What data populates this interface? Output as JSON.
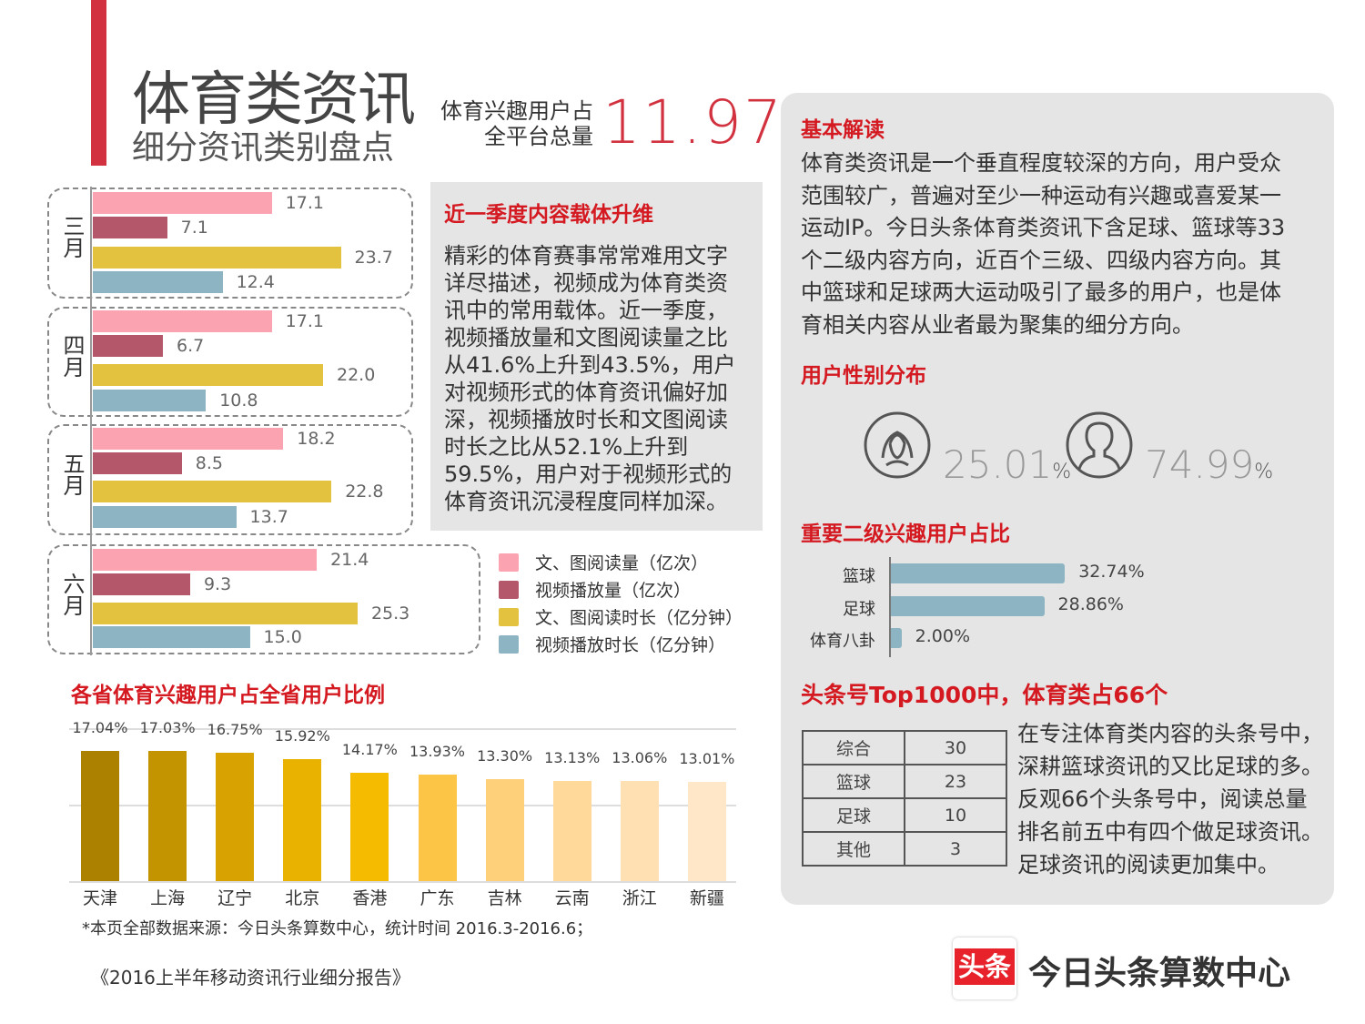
{
  "header": {
    "title": "体育类资讯",
    "subtitle": "细分资讯类别盘点",
    "share_label_line1": "体育兴趣用户占",
    "share_label_line2": "全平台总量",
    "share_value": "11.97",
    "share_unit": "%"
  },
  "content_box": {
    "heading": "近一季度内容载体升维",
    "body": [
      "精彩的体育赛事常常难用文字",
      "详尽描述，视频成为体育类资",
      "讯中的常用载体。近一季度，",
      "视频播放量和文图阅读量之比",
      "从41.6%上升到43.5%，用户",
      "对视频形式的体育资讯偏好加",
      "深，视频播放时长和文图阅读",
      "时长之比从52.1%上升到",
      "59.5%，用户对于视频形式的",
      "体育资讯沉浸程度同样加深。"
    ]
  },
  "province_heading": "各省体育兴趣用户占全省用户比例",
  "footnote": "*本页全部数据来源：今日头条算数中心，统计时间 2016.3-2016.6；",
  "report_title": "《2016上半年移动资讯行业细分报告》",
  "right": {
    "basic_heading": "基本解读",
    "basic_text": [
      "体育类资讯是一个垂直程度较深的方向，用户受众",
      "范围较广，普遍对至少一种运动有兴趣或喜爱某一",
      "运动IP。今日头条体育类资讯下含足球、篮球等33",
      "个二级内容方向，近百个三级、四级内容方向。其",
      "中篮球和足球两大运动吸引了最多的用户，也是体",
      "育相关内容从业者最为聚集的细分方向。"
    ],
    "gender_heading": "用户性别分布",
    "female_value": "25.01",
    "male_value": "74.99",
    "pct": "%",
    "interest_heading": "重要二级兴趣用户占比",
    "top_heading": "头条号Top1000中，体育类占66个",
    "table": [
      [
        "综合",
        "30"
      ],
      [
        "篮球",
        "23"
      ],
      [
        "足球",
        "10"
      ],
      [
        "其他",
        "3"
      ]
    ],
    "top_text": [
      "在专注体育类内容的头条号中，",
      "深耕篮球资讯的又比足球的多。",
      "反观66个头条号中，阅读总量",
      "排名前五中有四个做足球资讯。",
      "足球资讯的阅读更加集中。"
    ]
  },
  "logo": {
    "badge": "头条",
    "name": "今日头条算数中心"
  },
  "chart_data": [
    {
      "type": "bar",
      "orientation": "horizontal",
      "categories": [
        "三月",
        "四月",
        "五月",
        "六月"
      ],
      "series": [
        {
          "name": "文、图阅读量（亿次）",
          "color": "#fba3b0",
          "values": [
            17.1,
            17.1,
            18.2,
            21.4
          ]
        },
        {
          "name": "视频播放量（亿次）",
          "color": "#b5576a",
          "values": [
            7.1,
            6.7,
            8.5,
            9.3
          ]
        },
        {
          "name": "文、图阅读时长（亿分钟）",
          "color": "#e3c23f",
          "values": [
            23.7,
            22.0,
            22.8,
            25.3
          ]
        },
        {
          "name": "视频播放时长（亿分钟）",
          "color": "#8db4c2",
          "values": [
            12.4,
            10.8,
            13.7,
            15.0
          ]
        }
      ],
      "labels": [
        [
          "17.1",
          "7.1",
          "23.7",
          "12.4"
        ],
        [
          "17.1",
          "6.7",
          "22.0",
          "10.8"
        ],
        [
          "18.2",
          "8.5",
          "22.8",
          "13.7"
        ],
        [
          "21.4",
          "9.3",
          "25.3",
          "15.0"
        ]
      ],
      "legend": "right"
    },
    {
      "type": "bar",
      "title": "各省体育兴趣用户占全省用户比例",
      "categories": [
        "天津",
        "上海",
        "辽宁",
        "北京",
        "香港",
        "广东",
        "吉林",
        "云南",
        "浙江",
        "新疆"
      ],
      "values": [
        17.04,
        17.03,
        16.75,
        15.92,
        14.17,
        13.93,
        13.3,
        13.13,
        13.06,
        13.01
      ],
      "labels": [
        "17.04%",
        "17.03%",
        "16.75%",
        "15.92%",
        "14.17%",
        "13.93%",
        "13.30%",
        "13.13%",
        "13.06%",
        "13.01%"
      ],
      "colors": [
        "#ad8100",
        "#c39300",
        "#d8a300",
        "#e9b100",
        "#f5bb00",
        "#fcc545",
        "#fed07a",
        "#fed99a",
        "#fee0b2",
        "#ffe7c8"
      ],
      "ylim": [
        0,
        20
      ],
      "grid": true
    },
    {
      "type": "bar",
      "orientation": "horizontal",
      "title": "重要二级兴趣用户占比",
      "categories": [
        "篮球",
        "足球",
        "体育八卦"
      ],
      "values": [
        32.74,
        28.86,
        2.0
      ],
      "labels": [
        "32.74%",
        "28.86%",
        "2.00%"
      ],
      "color": "#8db4c2"
    }
  ]
}
